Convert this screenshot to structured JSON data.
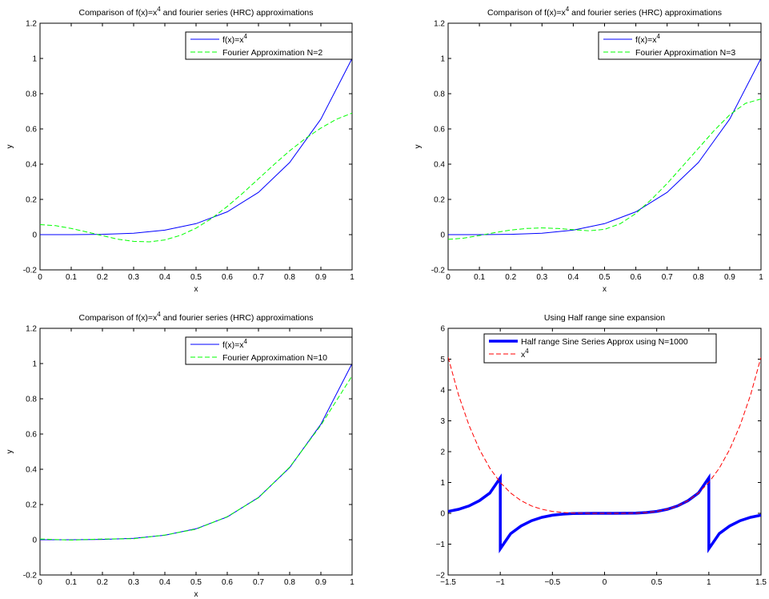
{
  "chart_data": [
    {
      "type": "line",
      "title": "Comparison of f(x)=x4 and fourier series (HRC) approximations",
      "title_parts": {
        "pre": "Comparison of f(x)=x",
        "sup": "4",
        "post": " and fourier series (HRC) approximations"
      },
      "xlabel": "x",
      "ylabel": "y",
      "xlim": [
        0,
        1
      ],
      "ylim": [
        -0.2,
        1.2
      ],
      "xticks": [
        "0",
        "0.1",
        "0.2",
        "0.3",
        "0.4",
        "0.5",
        "0.6",
        "0.7",
        "0.8",
        "0.9",
        "1"
      ],
      "yticks": [
        "-0.2",
        "0",
        "0.2",
        "0.4",
        "0.6",
        "0.8",
        "1",
        "1.2"
      ],
      "legend_placement": "top-right",
      "series": [
        {
          "name": "f(x)=x4",
          "name_parts": {
            "pre": "f(x)=x",
            "sup": "4"
          },
          "color": "#0000ff",
          "style": "solid",
          "x": [
            0,
            0.1,
            0.2,
            0.3,
            0.4,
            0.5,
            0.6,
            0.7,
            0.8,
            0.9,
            1.0
          ],
          "y": [
            0,
            0.0001,
            0.0016,
            0.0081,
            0.0256,
            0.0625,
            0.1296,
            0.2401,
            0.4096,
            0.6561,
            1.0
          ]
        },
        {
          "name": "Fourier Approximation N=2",
          "color": "#00ff00",
          "style": "dashed",
          "x": [
            0,
            0.05,
            0.1,
            0.15,
            0.2,
            0.25,
            0.3,
            0.35,
            0.4,
            0.45,
            0.5,
            0.55,
            0.6,
            0.65,
            0.7,
            0.75,
            0.8,
            0.85,
            0.9,
            0.95,
            1.0
          ],
          "y": [
            0.057,
            0.051,
            0.035,
            0.015,
            -0.006,
            -0.026,
            -0.038,
            -0.041,
            -0.03,
            -0.004,
            0.037,
            0.092,
            0.16,
            0.236,
            0.317,
            0.398,
            0.476,
            0.545,
            0.605,
            0.655,
            0.69
          ]
        }
      ]
    },
    {
      "type": "line",
      "title": "Comparison of f(x)=x4 and fourier series (HRC) approximations",
      "title_parts": {
        "pre": "Comparison of f(x)=x",
        "sup": "4",
        "post": " and fourier series (HRC) approximations"
      },
      "xlabel": "x",
      "ylabel": "y",
      "xlim": [
        0,
        1
      ],
      "ylim": [
        -0.2,
        1.2
      ],
      "xticks": [
        "0",
        "0.1",
        "0.2",
        "0.3",
        "0.4",
        "0.5",
        "0.6",
        "0.7",
        "0.8",
        "0.9",
        "1"
      ],
      "yticks": [
        "-0.2",
        "0",
        "0.2",
        "0.4",
        "0.6",
        "0.8",
        "1",
        "1.2"
      ],
      "legend_placement": "top-right",
      "series": [
        {
          "name": "f(x)=x4",
          "name_parts": {
            "pre": "f(x)=x",
            "sup": "4"
          },
          "color": "#0000ff",
          "style": "solid",
          "x": [
            0,
            0.1,
            0.2,
            0.3,
            0.4,
            0.5,
            0.6,
            0.7,
            0.8,
            0.9,
            1.0
          ],
          "y": [
            0,
            0.0001,
            0.0016,
            0.0081,
            0.0256,
            0.0625,
            0.1296,
            0.2401,
            0.4096,
            0.6561,
            1.0
          ]
        },
        {
          "name": "Fourier Approximation N=3",
          "color": "#00ff00",
          "style": "dashed",
          "x": [
            0,
            0.05,
            0.1,
            0.15,
            0.2,
            0.25,
            0.3,
            0.35,
            0.4,
            0.45,
            0.5,
            0.55,
            0.6,
            0.65,
            0.7,
            0.75,
            0.8,
            0.85,
            0.9,
            0.95,
            1.0
          ],
          "y": [
            -0.027,
            -0.02,
            -0.005,
            0.012,
            0.026,
            0.035,
            0.038,
            0.035,
            0.028,
            0.022,
            0.03,
            0.062,
            0.12,
            0.2,
            0.29,
            0.39,
            0.49,
            0.59,
            0.68,
            0.745,
            0.77
          ]
        }
      ]
    },
    {
      "type": "line",
      "title": "Comparison of f(x)=x4 and fourier series (HRC) approximations",
      "title_parts": {
        "pre": "Comparison of f(x)=x",
        "sup": "4",
        "post": " and fourier series (HRC) approximations"
      },
      "xlabel": "x",
      "ylabel": "y",
      "xlim": [
        0,
        1
      ],
      "ylim": [
        -0.2,
        1.2
      ],
      "xticks": [
        "0",
        "0.1",
        "0.2",
        "0.3",
        "0.4",
        "0.5",
        "0.6",
        "0.7",
        "0.8",
        "0.9",
        "1"
      ],
      "yticks": [
        "-0.2",
        "0",
        "0.2",
        "0.4",
        "0.6",
        "0.8",
        "1",
        "1.2"
      ],
      "legend_placement": "top-right",
      "series": [
        {
          "name": "f(x)=x4",
          "name_parts": {
            "pre": "f(x)=x",
            "sup": "4"
          },
          "color": "#0000ff",
          "style": "solid",
          "x": [
            0,
            0.1,
            0.2,
            0.3,
            0.4,
            0.5,
            0.6,
            0.7,
            0.8,
            0.9,
            1.0
          ],
          "y": [
            0,
            0.0001,
            0.0016,
            0.0081,
            0.0256,
            0.0625,
            0.1296,
            0.2401,
            0.4096,
            0.6561,
            1.0
          ]
        },
        {
          "name": "Fourier Approximation N=10",
          "color": "#00ff00",
          "style": "dashed",
          "x": [
            0,
            0.1,
            0.2,
            0.3,
            0.4,
            0.5,
            0.6,
            0.7,
            0.8,
            0.9,
            0.95,
            1.0
          ],
          "y": [
            0.004,
            -0.002,
            0.004,
            0.006,
            0.027,
            0.06,
            0.131,
            0.238,
            0.412,
            0.65,
            0.79,
            0.93
          ]
        }
      ]
    },
    {
      "type": "line",
      "title": "Using Half range sine expansion",
      "xlabel": "",
      "ylabel": "",
      "xlim": [
        -1.5,
        1.5
      ],
      "ylim": [
        -2,
        6
      ],
      "xticks": [
        "−1.5",
        "−1",
        "−0.5",
        "0",
        "0.5",
        "1",
        "1.5"
      ],
      "yticks": [
        "−2",
        "−1",
        "0",
        "1",
        "2",
        "3",
        "4",
        "5",
        "6"
      ],
      "legend_placement": "top",
      "series": [
        {
          "name": "Half range Sine Series Approx using N=1000",
          "color": "#0000ff",
          "style": "solid-thick",
          "x": [
            -1.5,
            -1.4,
            -1.3,
            -1.2,
            -1.1,
            -1.0,
            -1.0,
            -0.9,
            -0.8,
            -0.7,
            -0.6,
            -0.5,
            -0.4,
            -0.3,
            -0.2,
            -0.1,
            0,
            0.1,
            0.2,
            0.3,
            0.4,
            0.5,
            0.6,
            0.7,
            0.8,
            0.9,
            1.0,
            1.0,
            1.1,
            1.2,
            1.3,
            1.4,
            1.5
          ],
          "y": [
            0.0625,
            0.1296,
            0.2401,
            0.4096,
            0.6561,
            1.15,
            -1.15,
            -0.6561,
            -0.4096,
            -0.2401,
            -0.1296,
            -0.0625,
            -0.0256,
            -0.0081,
            -0.0016,
            -0.0001,
            0,
            0.0001,
            0.0016,
            0.0081,
            0.0256,
            0.0625,
            0.1296,
            0.2401,
            0.4096,
            0.6561,
            1.15,
            -1.15,
            -0.6561,
            -0.4096,
            -0.2401,
            -0.1296,
            -0.0625
          ]
        },
        {
          "name": "x4",
          "name_parts": {
            "pre": "x",
            "sup": "4"
          },
          "color": "#ff0000",
          "style": "dashed",
          "x": [
            -1.5,
            -1.4,
            -1.3,
            -1.2,
            -1.1,
            -1.0,
            -0.9,
            -0.8,
            -0.7,
            -0.6,
            -0.5,
            -0.4,
            -0.3,
            -0.2,
            -0.1,
            0,
            0.1,
            0.2,
            0.3,
            0.4,
            0.5,
            0.6,
            0.7,
            0.8,
            0.9,
            1.0,
            1.1,
            1.2,
            1.3,
            1.4,
            1.5
          ],
          "y": [
            5.0625,
            3.8416,
            2.8561,
            2.0736,
            1.4641,
            1.0,
            0.6561,
            0.4096,
            0.2401,
            0.1296,
            0.0625,
            0.0256,
            0.0081,
            0.0016,
            0.0001,
            0,
            0.0001,
            0.0016,
            0.0081,
            0.0256,
            0.0625,
            0.1296,
            0.2401,
            0.4096,
            0.6561,
            1.0,
            1.4641,
            2.0736,
            2.8561,
            3.8416,
            5.0625
          ]
        }
      ]
    }
  ]
}
